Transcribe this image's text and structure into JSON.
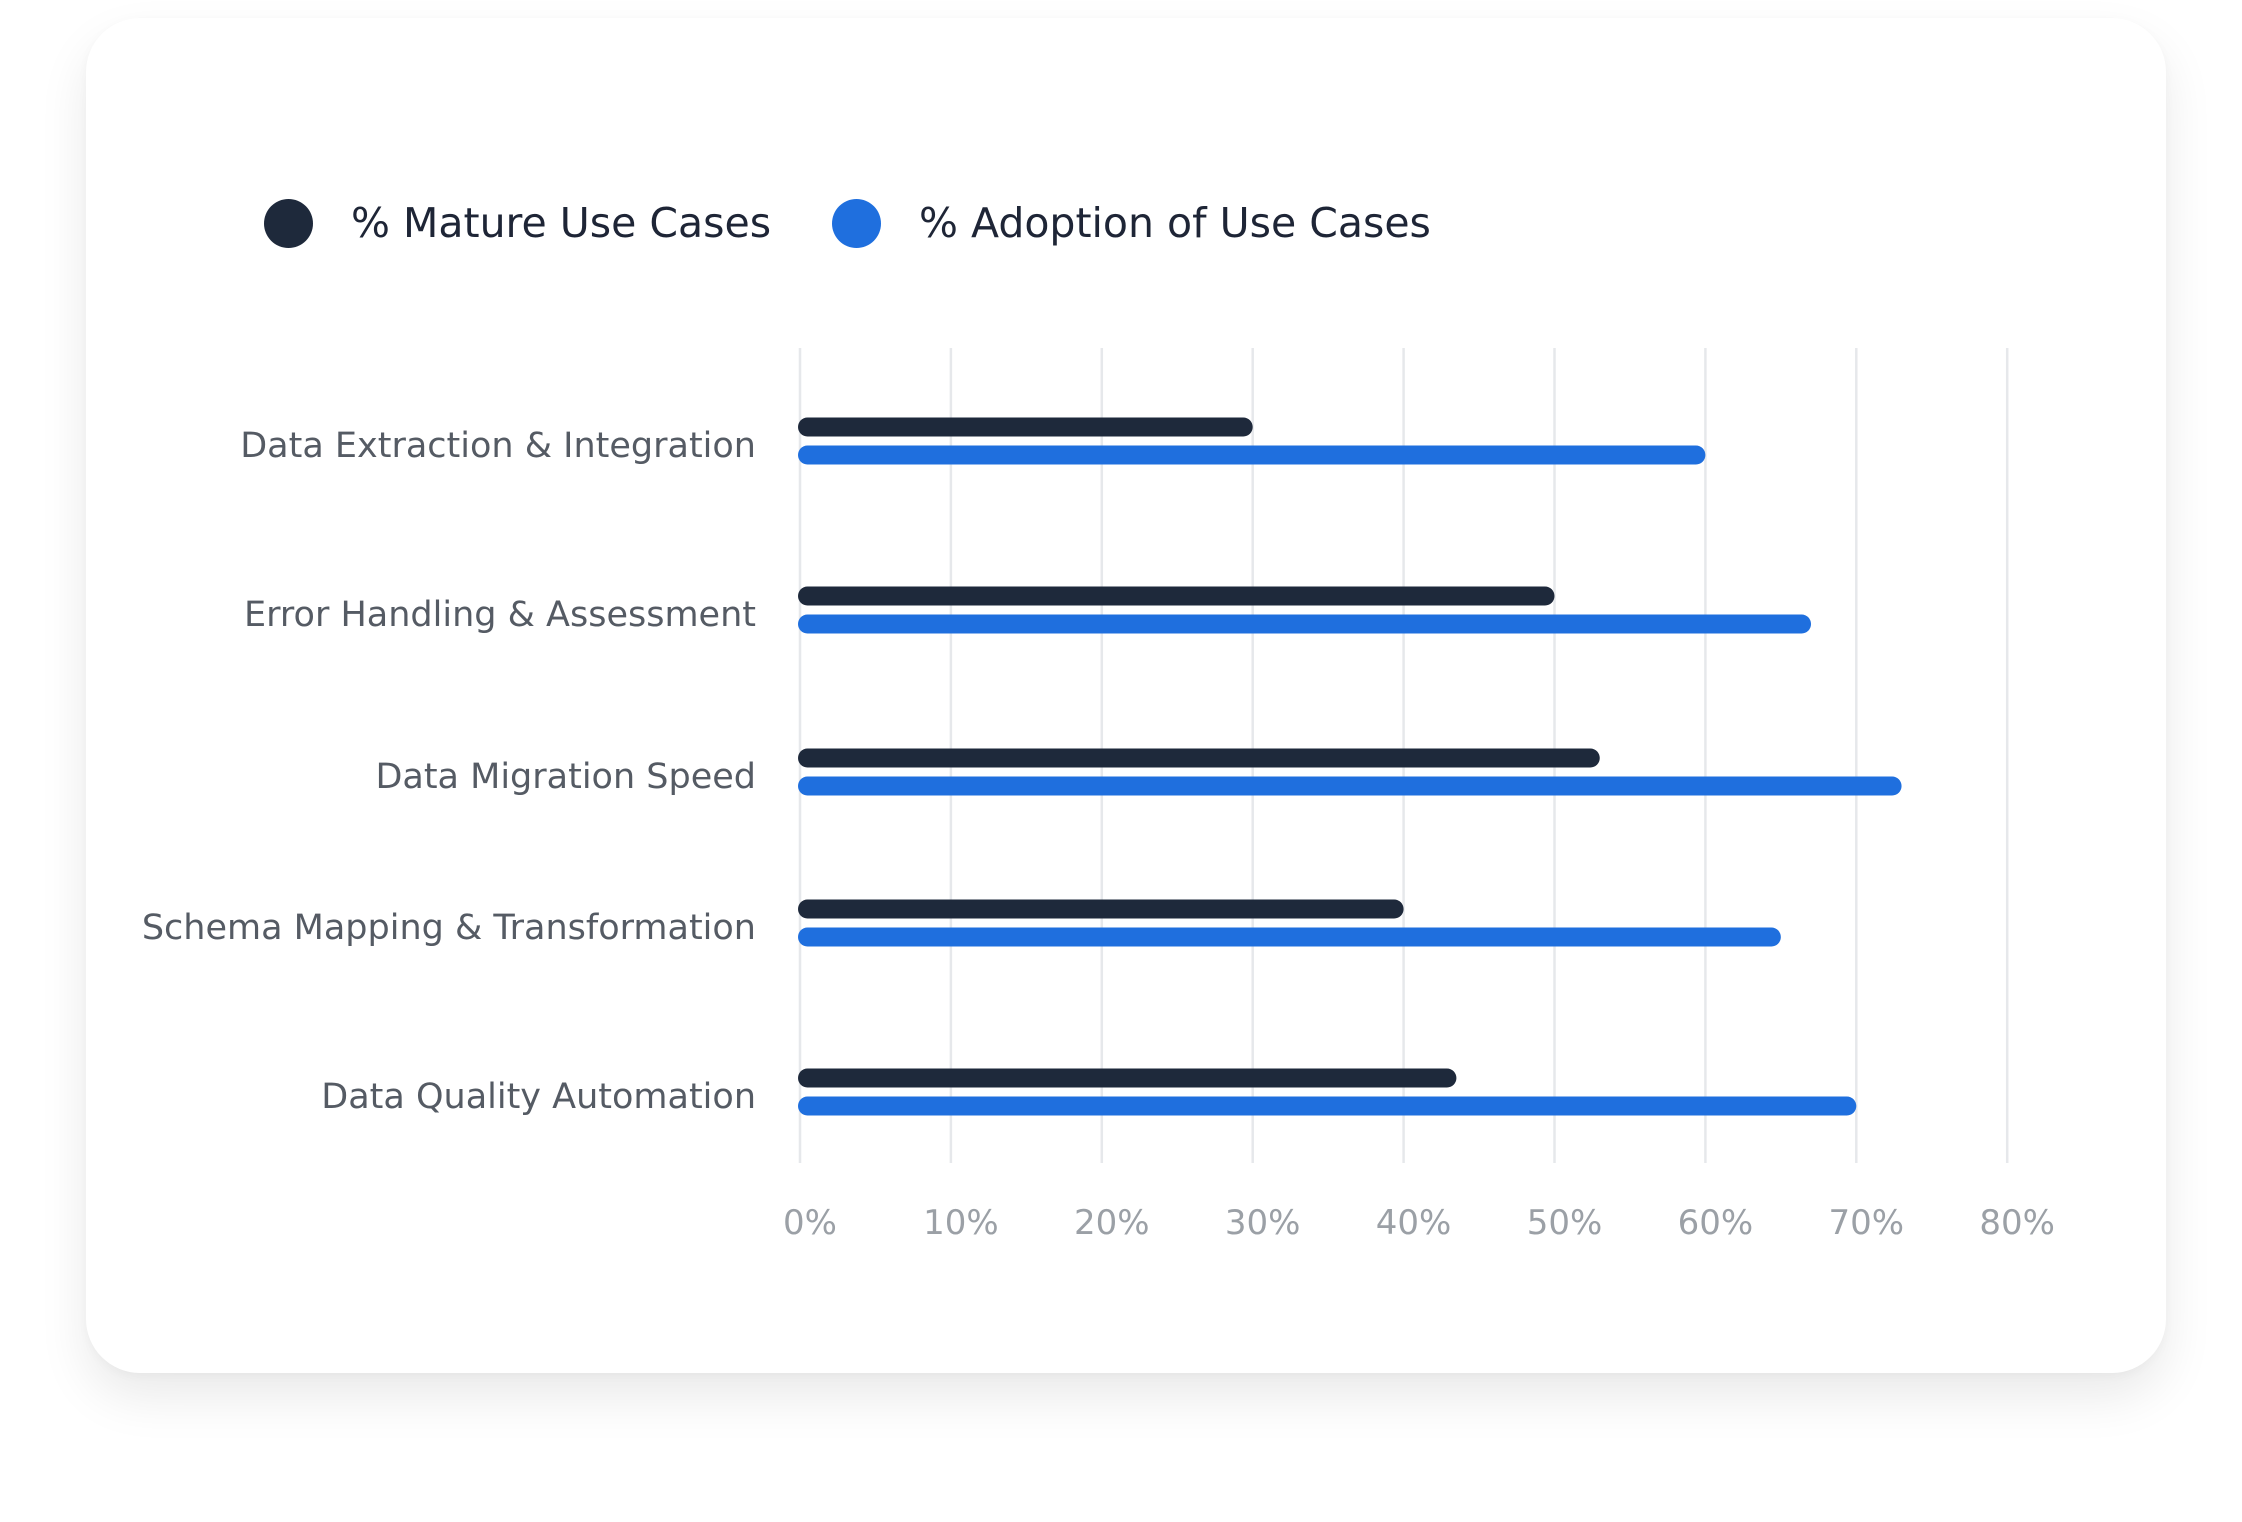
{
  "legend": {
    "mature": {
      "label": "% Mature Use Cases",
      "color": "#1e293b"
    },
    "adoption": {
      "label": "% Adoption of Use Cases",
      "color": "#1f6fde"
    }
  },
  "chart_data": {
    "type": "bar",
    "orientation": "horizontal",
    "title": "",
    "xlabel": "",
    "ylabel": "",
    "xlim": [
      0,
      80
    ],
    "x_ticks": [
      "0%",
      "10%",
      "20%",
      "30%",
      "40%",
      "50%",
      "60%",
      "70%",
      "80%"
    ],
    "grid": "vertical",
    "legend_position": "top-left",
    "categories": [
      "Data Extraction & Integration",
      "Error Handling & Assessment",
      "Data Migration Speed",
      "Schema Mapping & Transformation",
      "Data Quality Automation"
    ],
    "series": [
      {
        "name": "% Mature Use Cases",
        "color": "#1e293b",
        "values": [
          30,
          50,
          53,
          40,
          43.5
        ]
      },
      {
        "name": "% Adoption of Use Cases",
        "color": "#1f6fde",
        "values": [
          60,
          67,
          73,
          65,
          70
        ]
      }
    ]
  }
}
